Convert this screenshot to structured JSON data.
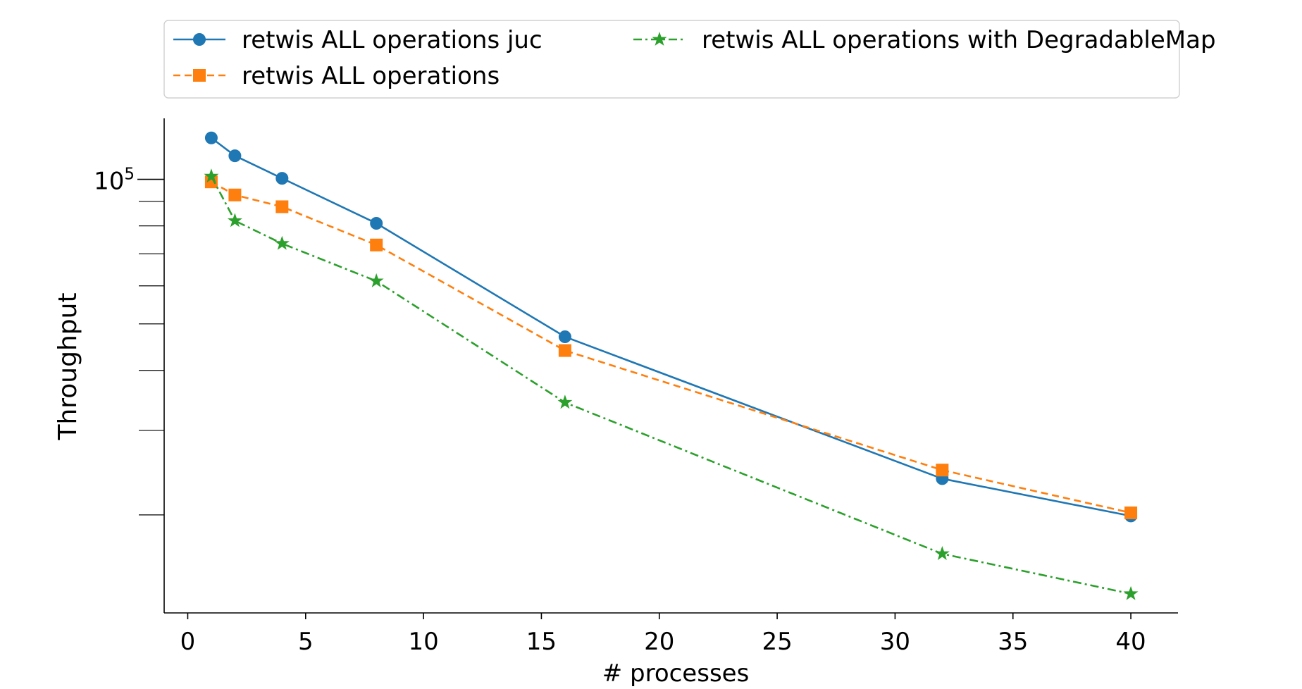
{
  "chart_data": {
    "type": "line",
    "title": "",
    "xlabel": "# processes",
    "ylabel": "Throughput",
    "x_scale": "linear",
    "y_scale": "log",
    "xlim": [
      -1,
      42
    ],
    "ylim": [
      12500,
      134000
    ],
    "x_ticks": [
      0,
      5,
      10,
      15,
      20,
      25,
      30,
      35,
      40
    ],
    "x_tick_labels": [
      "0",
      "5",
      "10",
      "15",
      "20",
      "25",
      "30",
      "35",
      "40"
    ],
    "y_major_tick": {
      "value": 100000,
      "base": "10",
      "exponent": "5"
    },
    "y_minor_ticks": [
      20000,
      30000,
      40000,
      50000,
      60000,
      70000,
      80000,
      90000
    ],
    "grid": false,
    "legend_position": "top",
    "x": [
      1,
      2,
      4,
      8,
      16,
      32,
      40
    ],
    "series": [
      {
        "name": "retwis ALL operations juc",
        "values": [
          122000,
          112000,
          100500,
          81000,
          47000,
          23800,
          19900
        ],
        "color": "#1f77b4",
        "marker": "circle",
        "line_style": "solid"
      },
      {
        "name": "retwis ALL operations",
        "values": [
          98800,
          92800,
          87700,
          73000,
          44000,
          24800,
          20200
        ],
        "color": "#ff7f0e",
        "marker": "square",
        "line_style": "dashed"
      },
      {
        "name": "retwis ALL operations with DegradableMap",
        "values": [
          101500,
          82000,
          73500,
          61400,
          34300,
          16600,
          13700
        ],
        "color": "#2ca02c",
        "marker": "star",
        "line_style": "dashdot"
      }
    ]
  }
}
